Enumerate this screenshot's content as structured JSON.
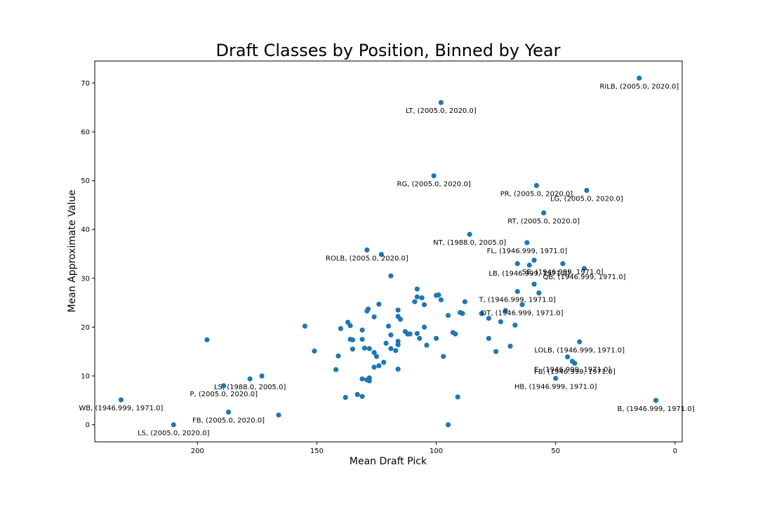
{
  "chart_data": {
    "type": "scatter",
    "title": "Draft Classes by Position, Binned by Year",
    "xlabel": "Mean Draft Pick",
    "ylabel": "Mean Approximate Value",
    "xlim": [
      243,
      -3
    ],
    "ylim": [
      -3.5,
      74.5
    ],
    "x_inverted": true,
    "xticks": [
      200,
      150,
      100,
      50,
      0
    ],
    "yticks": [
      0,
      10,
      20,
      30,
      40,
      50,
      60,
      70
    ],
    "grid": false,
    "marker_color": "#1f77b4",
    "points": [
      [
        15.0,
        71.0
      ],
      [
        98.0,
        66.0
      ],
      [
        101.0,
        51.0
      ],
      [
        58.0,
        49.0
      ],
      [
        37.0,
        48.0
      ],
      [
        55.0,
        43.4
      ],
      [
        86.0,
        39.0
      ],
      [
        62.0,
        37.3
      ],
      [
        129.0,
        35.8
      ],
      [
        123.0,
        34.9
      ],
      [
        59.0,
        33.7
      ],
      [
        66.0,
        33.0
      ],
      [
        47.0,
        33.0
      ],
      [
        61.0,
        32.7
      ],
      [
        38.0,
        32.0
      ],
      [
        119.0,
        30.5
      ],
      [
        59.0,
        28.8
      ],
      [
        108.0,
        27.8
      ],
      [
        66.0,
        27.3
      ],
      [
        57.0,
        27.0
      ],
      [
        100.0,
        26.5
      ],
      [
        99.0,
        26.6
      ],
      [
        108.0,
        26.2
      ],
      [
        106.0,
        26.0
      ],
      [
        98.0,
        25.6
      ],
      [
        88.0,
        25.2
      ],
      [
        109.0,
        25.2
      ],
      [
        124.0,
        24.7
      ],
      [
        64.0,
        24.6
      ],
      [
        105.0,
        24.6
      ],
      [
        116.0,
        23.5
      ],
      [
        71.0,
        23.4
      ],
      [
        128.5,
        23.7
      ],
      [
        129.0,
        23.3
      ],
      [
        90.0,
        23.0
      ],
      [
        81.0,
        22.8
      ],
      [
        89.0,
        22.8
      ],
      [
        95.0,
        22.4
      ],
      [
        126.0,
        22.1
      ],
      [
        116.0,
        22.2
      ],
      [
        115.0,
        21.6
      ],
      [
        78.0,
        21.8
      ],
      [
        137.0,
        21.0
      ],
      [
        73.0,
        21.1
      ],
      [
        136.0,
        20.3
      ],
      [
        155.0,
        20.2
      ],
      [
        120.0,
        20.2
      ],
      [
        67.0,
        20.4
      ],
      [
        105.0,
        20.0
      ],
      [
        140.0,
        19.7
      ],
      [
        131.0,
        19.4
      ],
      [
        113.0,
        19.1
      ],
      [
        93.0,
        18.9
      ],
      [
        92.0,
        18.6
      ],
      [
        108.0,
        18.7
      ],
      [
        111.0,
        18.6
      ],
      [
        112.0,
        18.6
      ],
      [
        119.0,
        18.4
      ],
      [
        135.0,
        17.4
      ],
      [
        136.0,
        17.5
      ],
      [
        131.0,
        17.5
      ],
      [
        107.0,
        17.7
      ],
      [
        100.0,
        17.7
      ],
      [
        196.0,
        17.4
      ],
      [
        78.0,
        17.7
      ],
      [
        40.0,
        17.0
      ],
      [
        116.0,
        17.1
      ],
      [
        116.0,
        16.4
      ],
      [
        121.0,
        16.7
      ],
      [
        104.0,
        16.3
      ],
      [
        69.0,
        16.1
      ],
      [
        135.0,
        15.5
      ],
      [
        130.0,
        15.7
      ],
      [
        128.0,
        15.6
      ],
      [
        119.0,
        15.6
      ],
      [
        117.0,
        15.2
      ],
      [
        151.0,
        15.1
      ],
      [
        75.0,
        15.0
      ],
      [
        126.0,
        14.8
      ],
      [
        141.0,
        14.1
      ],
      [
        97.0,
        14.0
      ],
      [
        125.0,
        14.0
      ],
      [
        45.0,
        13.9
      ],
      [
        122.0,
        12.8
      ],
      [
        43.0,
        13.0
      ],
      [
        42.0,
        12.6
      ],
      [
        124.0,
        12.1
      ],
      [
        126.0,
        11.8
      ],
      [
        142.0,
        11.3
      ],
      [
        116.0,
        11.4
      ],
      [
        173.0,
        10.0
      ],
      [
        178.0,
        9.4
      ],
      [
        50.0,
        9.5
      ],
      [
        131.0,
        9.4
      ],
      [
        128.0,
        9.6
      ],
      [
        129.0,
        9.2
      ],
      [
        128.0,
        9.0
      ],
      [
        189.0,
        8.0
      ],
      [
        133.0,
        6.2
      ],
      [
        131.0,
        5.8
      ],
      [
        138.0,
        5.6
      ],
      [
        91.0,
        5.7
      ],
      [
        232.0,
        5.1
      ],
      [
        8.0,
        5.0
      ],
      [
        187.0,
        2.6
      ],
      [
        166.0,
        2.0
      ],
      [
        210.0,
        0.0
      ],
      [
        95.0,
        0.0
      ]
    ],
    "annotations": [
      {
        "x": 15.0,
        "y": 71.0,
        "text": "RILB, (2005.0, 2020.0]"
      },
      {
        "x": 98.0,
        "y": 66.0,
        "text": "LT, (2005.0, 2020.0]"
      },
      {
        "x": 101.0,
        "y": 51.0,
        "text": "RG, (2005.0, 2020.0]"
      },
      {
        "x": 58.0,
        "y": 49.0,
        "text": "PR, (2005.0, 2020.0]"
      },
      {
        "x": 37.0,
        "y": 48.0,
        "text": "LG, (2005.0, 2020.0]"
      },
      {
        "x": 55.0,
        "y": 43.4,
        "text": "RT, (2005.0, 2020.0]"
      },
      {
        "x": 86.0,
        "y": 39.0,
        "text": "NT, (1988.0, 2005.0]"
      },
      {
        "x": 62.0,
        "y": 37.3,
        "text": "FL, (1946.999, 1971.0]"
      },
      {
        "x": 129.0,
        "y": 35.8,
        "text": "ROLB, (2005.0, 2020.0]"
      },
      {
        "x": 61.0,
        "y": 32.7,
        "text": "LB, (1946.999, 1971.0]"
      },
      {
        "x": 47.0,
        "y": 33.0,
        "text": "SE, (1946.999, 1971.0]"
      },
      {
        "x": 38.0,
        "y": 32.0,
        "text": "QB, (1946.999, 1971.0]"
      },
      {
        "x": 66.0,
        "y": 27.3,
        "text": "T, (1946.999, 1971.0]"
      },
      {
        "x": 64.0,
        "y": 24.6,
        "text": "DT, (1946.999, 1971.0]"
      },
      {
        "x": 40.0,
        "y": 17.0,
        "text": "LOLB, (1946.999, 1971.0]"
      },
      {
        "x": 43.0,
        "y": 13.0,
        "text": "E, (1946.999, 1971.0]"
      },
      {
        "x": 42.0,
        "y": 12.6,
        "text": "FB, (1946.999, 1971.0]"
      },
      {
        "x": 50.0,
        "y": 9.5,
        "text": "HB, (1946.999, 1971.0]"
      },
      {
        "x": 189.0,
        "y": 8.0,
        "text": "P, (2005.0, 2020.0]"
      },
      {
        "x": 187.0,
        "y": 2.6,
        "text": "FB, (2005.0, 2020.0]"
      },
      {
        "x": 210.0,
        "y": 0.0,
        "text": "LS, (2005.0, 2020.0]"
      },
      {
        "x": 232.0,
        "y": 5.1,
        "text": "WB, (1946.999, 1971.0]"
      },
      {
        "x": 8.0,
        "y": 5.0,
        "text": "B, (1946.999, 1971.0]"
      },
      {
        "x": 178.0,
        "y": 9.4,
        "text": "LS, (1988.0, 2005.0]"
      }
    ]
  }
}
